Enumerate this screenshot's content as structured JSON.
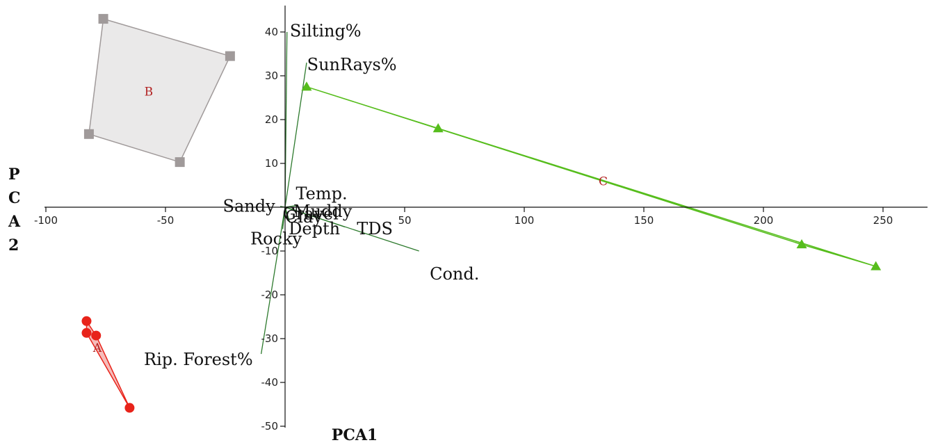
{
  "chart_data": {
    "type": "scatter",
    "title": "",
    "xlabel": "PCA1",
    "ylabel": "PCA2",
    "ylabel_letters": [
      "P",
      "C",
      "A",
      "2"
    ],
    "xlim": [
      -100,
      270
    ],
    "ylim": [
      -50,
      45
    ],
    "x_ticks": [
      -100,
      -50,
      0,
      50,
      100,
      150,
      200,
      250
    ],
    "x_tick_labels": [
      "-100",
      "-50",
      "",
      "50",
      "100",
      "150",
      "200",
      "250"
    ],
    "y_ticks": [
      -50,
      -40,
      -30,
      -20,
      -10,
      10,
      20,
      30,
      40
    ],
    "y_tick_labels": [
      "-50",
      "-40",
      "-30",
      "-20",
      "-10",
      "10",
      "20",
      "30",
      "40"
    ],
    "grid": false,
    "groups": [
      {
        "label": "A",
        "color": "#e8231a",
        "fill": "#f2a6a3",
        "marker": "circle",
        "points": [
          [
            -83,
            -26
          ],
          [
            -83,
            -28.7
          ],
          [
            -79,
            -29.3
          ],
          [
            -65,
            -45.8
          ]
        ],
        "hull": [
          [
            -83,
            -26
          ],
          [
            -79,
            -29.3
          ],
          [
            -65,
            -45.8
          ],
          [
            -83,
            -28.7
          ]
        ],
        "label_pos": [
          -78.5,
          -33
        ]
      },
      {
        "label": "B",
        "color": "#a09a9a",
        "fill": "#e3e1e1",
        "marker": "square",
        "points": [
          [
            -76,
            43
          ],
          [
            -23,
            34.5
          ],
          [
            -44,
            10.3
          ],
          [
            -82,
            16.7
          ]
        ],
        "hull": [
          [
            -76,
            43
          ],
          [
            -23,
            34.5
          ],
          [
            -44,
            10.3
          ],
          [
            -82,
            16.7
          ]
        ],
        "label_pos": [
          -57,
          25.5
        ]
      },
      {
        "label": "C",
        "color": "#56bd1c",
        "fill": "#bfe7a8",
        "marker": "triangle",
        "points": [
          [
            9,
            27.5
          ],
          [
            64,
            18
          ],
          [
            216,
            -8.5
          ],
          [
            247,
            -13.5
          ]
        ],
        "hull": [
          [
            9,
            27.5
          ],
          [
            64,
            18
          ],
          [
            247,
            -13.5
          ],
          [
            216,
            -8.5
          ]
        ],
        "label_pos": [
          133,
          5
        ]
      }
    ],
    "vectors": {
      "color": "#2d7a2d",
      "items": [
        {
          "name": "Silting%",
          "x": 0.8,
          "y": 40
        },
        {
          "name": "SunRays%",
          "x": 9,
          "y": 33
        },
        {
          "name": "Rip. Forest%",
          "x": -10,
          "y": -33.5
        },
        {
          "name": "Cond.",
          "x": 56,
          "y": -10
        },
        {
          "name": "Temp.",
          "x": 5,
          "y": 0.4
        },
        {
          "name": "Sandy",
          "x": -2,
          "y": 0.2
        },
        {
          "name": "Muddy",
          "x": 5,
          "y": -0.8
        },
        {
          "name": "Gravel",
          "x": 0.5,
          "y": -1.5
        },
        {
          "name": "Clay",
          "x": 1,
          "y": -2.5
        },
        {
          "name": "Depth",
          "x": 2,
          "y": -3.5
        },
        {
          "name": "TDS",
          "x": 25,
          "y": -4.5
        },
        {
          "name": "Rocky",
          "x": -1,
          "y": -5
        }
      ],
      "labels": [
        {
          "text": "Silting%",
          "x": 2,
          "y": 39
        },
        {
          "text": "SunRays%",
          "x": 9.2,
          "y": 31.3
        },
        {
          "text": "Rip. Forest%",
          "x": -59,
          "y": -36
        },
        {
          "text": "Cond.",
          "x": 60.5,
          "y": -16.5
        },
        {
          "text": "Temp.",
          "x": 4.5,
          "y": 1.8
        },
        {
          "text": "Sandy",
          "x": -26,
          "y": -1
        },
        {
          "text": "Muddy",
          "x": 3.5,
          "y": -2.2
        },
        {
          "text": "Gravel",
          "x": -1,
          "y": -2.8
        },
        {
          "text": "Clay",
          "x": 0,
          "y": -3.5
        },
        {
          "text": "Depth",
          "x": 1.5,
          "y": -6.2
        },
        {
          "text": "TDS",
          "x": 30,
          "y": -6.2
        },
        {
          "text": "Rocky",
          "x": -14.5,
          "y": -8.5
        }
      ]
    }
  }
}
